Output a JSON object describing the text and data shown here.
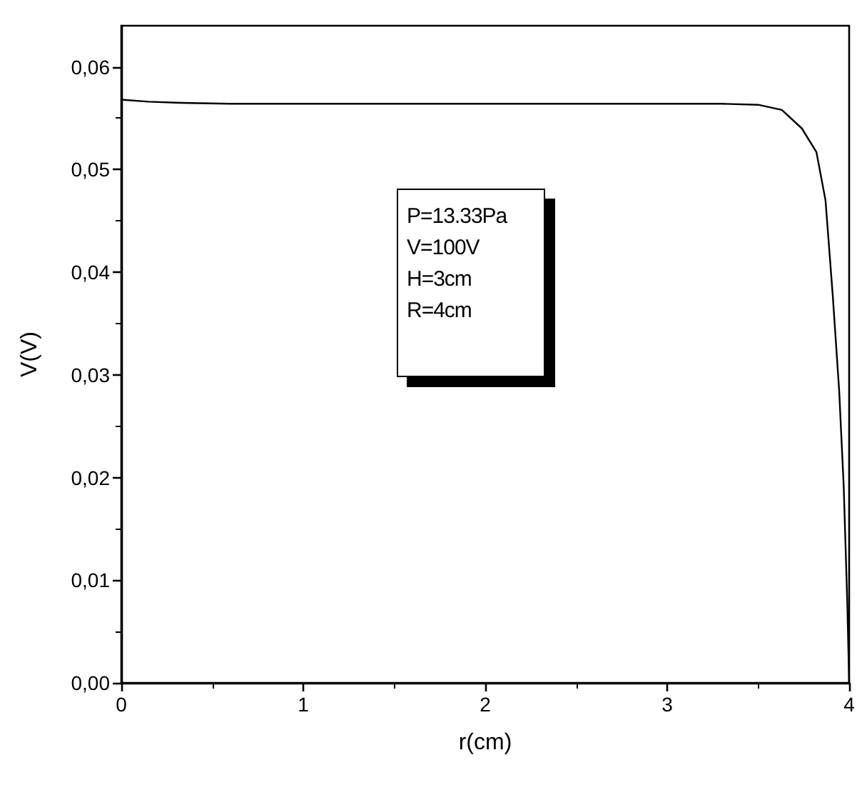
{
  "chart_data": {
    "type": "line",
    "xlabel": "r(cm)",
    "ylabel": "V(V)",
    "x": [
      0,
      0.15,
      0.3,
      0.6,
      1,
      1.5,
      2,
      2.5,
      3,
      3.3,
      3.5,
      3.63,
      3.74,
      3.82,
      3.87,
      3.91,
      3.945,
      3.97,
      3.99,
      4
    ],
    "series": [
      {
        "color": "#000000",
        "values": [
          0.0568,
          0.0566,
          0.0565,
          0.0564,
          0.0564,
          0.0564,
          0.0564,
          0.0564,
          0.0564,
          0.0564,
          0.0563,
          0.0558,
          0.054,
          0.0517,
          0.047,
          0.0377,
          0.0285,
          0.0192,
          0.0076,
          0
        ]
      }
    ],
    "xlim": [
      0,
      4
    ],
    "xticks": [
      0,
      1,
      2,
      3,
      4
    ],
    "ylim": [
      0,
      0.064
    ],
    "yticks": [
      {
        "value": 0,
        "label": "0,00"
      },
      {
        "value": 0.01,
        "label": "0,01"
      },
      {
        "value": 0.02,
        "label": "0,02"
      },
      {
        "value": 0.03,
        "label": "0,03"
      },
      {
        "value": 0.04,
        "label": "0,04"
      },
      {
        "value": 0.05,
        "label": "0,05"
      },
      {
        "value": 0.06,
        "label": "0,06"
      }
    ],
    "annotations": [
      "P=13.33Pa",
      "V=100V",
      "H=3cm",
      "R=4cm"
    ],
    "grid": false,
    "marker": "none",
    "line_style": "solid"
  }
}
